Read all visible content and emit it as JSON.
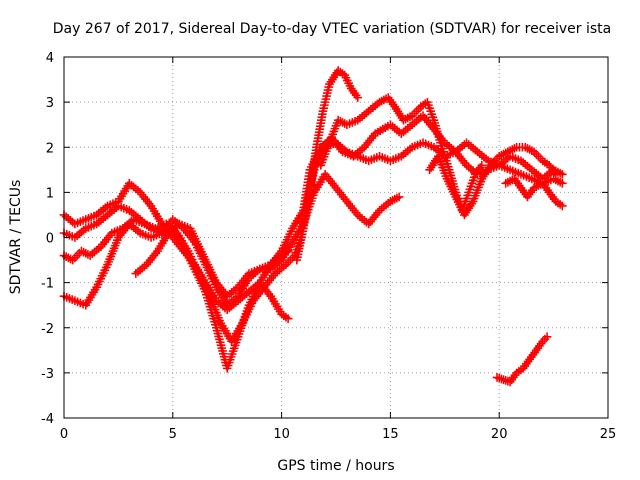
{
  "chart_data": {
    "type": "scatter",
    "title": "Day 267 of 2017, Sidereal Day-to-day VTEC variation (SDTVAR) for receiver ista",
    "xlabel": "GPS time / hours",
    "ylabel": "SDTVAR / TECUs",
    "xlim": [
      0,
      25
    ],
    "ylim": [
      -4,
      4
    ],
    "x_ticks": [
      0,
      5,
      10,
      15,
      20,
      25
    ],
    "y_ticks": [
      -4,
      -3,
      -2,
      -1,
      0,
      1,
      2,
      3,
      4
    ],
    "grid": true,
    "marker": "plus",
    "color": "#ff0000",
    "series": [
      {
        "points": [
          [
            0.0,
            -1.3
          ],
          [
            0.5,
            -1.4
          ],
          [
            1.0,
            -1.5
          ],
          [
            1.5,
            -1.1
          ],
          [
            2.0,
            -0.6
          ],
          [
            2.5,
            0.0
          ],
          [
            3.0,
            0.3
          ],
          [
            3.5,
            0.1
          ],
          [
            4.0,
            0.0
          ],
          [
            4.5,
            0.1
          ],
          [
            5.0,
            0.2
          ],
          [
            5.5,
            -0.2
          ],
          [
            6.0,
            -0.7
          ],
          [
            6.5,
            -1.2
          ],
          [
            7.0,
            -2.0
          ],
          [
            7.5,
            -2.9
          ],
          [
            8.0,
            -2.2
          ],
          [
            8.5,
            -1.5
          ],
          [
            9.0,
            -1.0
          ],
          [
            9.5,
            -0.6
          ],
          [
            10.0,
            -0.3
          ],
          [
            10.5,
            0.2
          ],
          [
            11.0,
            0.6
          ],
          [
            11.3,
            1.5
          ],
          [
            11.8,
            2.0
          ],
          [
            12.3,
            2.2
          ],
          [
            12.8,
            1.9
          ],
          [
            13.3,
            1.8
          ],
          [
            13.8,
            2.0
          ],
          [
            14.3,
            2.3
          ],
          [
            15.0,
            2.5
          ],
          [
            15.5,
            2.3
          ],
          [
            16.0,
            2.5
          ],
          [
            16.5,
            2.7
          ],
          [
            17.0,
            2.4
          ],
          [
            17.5,
            2.1
          ],
          [
            18.0,
            1.9
          ],
          [
            18.5,
            1.6
          ],
          [
            19.0,
            1.4
          ],
          [
            19.5,
            1.5
          ],
          [
            20.0,
            1.6
          ],
          [
            20.5,
            1.8
          ],
          [
            21.0,
            1.7
          ],
          [
            21.5,
            1.5
          ],
          [
            22.0,
            1.3
          ],
          [
            22.5,
            1.5
          ],
          [
            22.9,
            1.4
          ]
        ]
      },
      {
        "points": [
          [
            0.0,
            -0.4
          ],
          [
            0.4,
            -0.5
          ],
          [
            0.8,
            -0.3
          ],
          [
            1.2,
            -0.4
          ],
          [
            1.7,
            -0.2
          ],
          [
            2.2,
            0.1
          ],
          [
            2.7,
            0.2
          ],
          [
            3.2,
            0.4
          ],
          [
            3.7,
            0.3
          ],
          [
            4.2,
            0.2
          ],
          [
            4.7,
            0.3
          ],
          [
            5.2,
            0.1
          ],
          [
            5.7,
            -0.3
          ],
          [
            6.2,
            -0.8
          ],
          [
            6.7,
            -1.3
          ],
          [
            7.2,
            -1.9
          ],
          [
            7.7,
            -2.3
          ],
          [
            8.2,
            -1.9
          ],
          [
            8.7,
            -1.4
          ],
          [
            9.2,
            -1.1
          ],
          [
            9.7,
            -0.8
          ],
          [
            10.2,
            -0.6
          ],
          [
            10.6,
            -0.4
          ],
          [
            10.9,
            0.0
          ],
          [
            11.2,
            0.9
          ],
          [
            11.6,
            1.7
          ],
          [
            12.0,
            2.0
          ],
          [
            12.5,
            2.1
          ],
          [
            13.0,
            1.9
          ],
          [
            13.5,
            1.8
          ],
          [
            14.0,
            1.7
          ],
          [
            14.5,
            1.8
          ],
          [
            15.0,
            1.7
          ],
          [
            15.5,
            1.8
          ],
          [
            16.0,
            2.0
          ],
          [
            16.5,
            2.1
          ],
          [
            17.0,
            2.0
          ],
          [
            17.5,
            1.8
          ],
          [
            18.0,
            1.9
          ],
          [
            18.5,
            2.1
          ],
          [
            19.0,
            1.9
          ],
          [
            19.5,
            1.7
          ],
          [
            20.0,
            1.6
          ],
          [
            20.5,
            1.5
          ],
          [
            21.0,
            1.4
          ],
          [
            21.5,
            1.3
          ],
          [
            22.0,
            1.2
          ],
          [
            22.5,
            1.3
          ],
          [
            22.9,
            1.2
          ]
        ]
      },
      {
        "points": [
          [
            0.0,
            0.1
          ],
          [
            0.5,
            0.0
          ],
          [
            1.0,
            0.2
          ],
          [
            1.5,
            0.3
          ],
          [
            2.0,
            0.5
          ],
          [
            2.5,
            0.7
          ],
          [
            3.0,
            0.6
          ],
          [
            3.5,
            0.4
          ],
          [
            4.0,
            0.2
          ],
          [
            4.5,
            0.1
          ],
          [
            5.0,
            0.4
          ],
          [
            5.5,
            0.2
          ],
          [
            6.0,
            -0.1
          ],
          [
            6.5,
            -0.6
          ],
          [
            7.0,
            -1.1
          ],
          [
            7.5,
            -1.5
          ],
          [
            8.0,
            -1.3
          ],
          [
            8.5,
            -0.9
          ],
          [
            9.0,
            -0.7
          ],
          [
            9.5,
            -0.7
          ],
          [
            10.0,
            -0.5
          ],
          [
            10.5,
            -0.1
          ],
          [
            11.0,
            0.3
          ],
          [
            11.5,
            1.0
          ],
          [
            12.0,
            1.4
          ],
          [
            12.5,
            1.1
          ],
          [
            13.0,
            0.8
          ],
          [
            13.5,
            0.5
          ],
          [
            14.0,
            0.3
          ],
          [
            14.5,
            0.6
          ],
          [
            15.0,
            0.8
          ],
          [
            15.4,
            0.9
          ]
        ]
      },
      {
        "points": [
          [
            0.0,
            0.5
          ],
          [
            0.5,
            0.3
          ],
          [
            1.0,
            0.4
          ],
          [
            1.5,
            0.5
          ],
          [
            2.0,
            0.7
          ],
          [
            2.5,
            0.8
          ],
          [
            3.0,
            1.2
          ],
          [
            3.5,
            1.0
          ],
          [
            4.0,
            0.7
          ],
          [
            4.5,
            0.3
          ],
          [
            5.0,
            0.0
          ],
          [
            5.5,
            -0.3
          ],
          [
            6.0,
            -0.6
          ],
          [
            6.5,
            -1.0
          ],
          [
            7.0,
            -1.4
          ],
          [
            7.5,
            -1.6
          ],
          [
            8.0,
            -1.4
          ],
          [
            8.5,
            -1.2
          ],
          [
            9.0,
            -1.0
          ],
          [
            9.5,
            -1.3
          ],
          [
            10.0,
            -1.7
          ],
          [
            10.3,
            -1.8
          ]
        ]
      },
      {
        "points": [
          [
            3.3,
            -0.8
          ],
          [
            3.8,
            -0.6
          ],
          [
            4.3,
            -0.3
          ],
          [
            4.8,
            0.1
          ],
          [
            5.3,
            0.3
          ],
          [
            5.8,
            0.2
          ],
          [
            6.2,
            -0.2
          ],
          [
            6.6,
            -0.6
          ],
          [
            7.0,
            -1.0
          ],
          [
            7.5,
            -1.3
          ],
          [
            8.0,
            -1.1
          ],
          [
            8.5,
            -0.8
          ],
          [
            9.0,
            -0.7
          ],
          [
            9.5,
            -0.6
          ],
          [
            10.0,
            -0.4
          ],
          [
            10.3,
            -0.3
          ]
        ]
      },
      {
        "points": [
          [
            10.7,
            -0.5
          ],
          [
            11.0,
            0.2
          ],
          [
            11.3,
            1.0
          ],
          [
            11.6,
            2.0
          ],
          [
            11.9,
            2.8
          ],
          [
            12.2,
            3.4
          ],
          [
            12.6,
            3.7
          ],
          [
            12.9,
            3.6
          ],
          [
            13.2,
            3.3
          ],
          [
            13.5,
            3.1
          ]
        ]
      },
      {
        "points": [
          [
            11.8,
            1.6
          ],
          [
            12.2,
            2.1
          ],
          [
            12.6,
            2.6
          ],
          [
            13.0,
            2.5
          ],
          [
            13.5,
            2.6
          ],
          [
            14.0,
            2.8
          ],
          [
            14.5,
            3.0
          ],
          [
            14.9,
            3.1
          ],
          [
            15.2,
            2.9
          ],
          [
            15.6,
            2.6
          ],
          [
            16.0,
            2.7
          ],
          [
            16.4,
            2.9
          ],
          [
            16.7,
            3.0
          ],
          [
            17.0,
            2.6
          ],
          [
            17.3,
            2.1
          ],
          [
            17.7,
            1.5
          ],
          [
            18.0,
            1.0
          ],
          [
            18.3,
            0.6
          ],
          [
            18.6,
            1.0
          ],
          [
            18.9,
            1.4
          ],
          [
            19.2,
            1.6
          ]
        ]
      },
      {
        "points": [
          [
            16.8,
            1.5
          ],
          [
            17.2,
            1.8
          ],
          [
            17.6,
            1.3
          ],
          [
            18.0,
            0.9
          ],
          [
            18.4,
            0.5
          ],
          [
            18.8,
            0.8
          ],
          [
            19.2,
            1.3
          ],
          [
            19.6,
            1.6
          ],
          [
            20.0,
            1.8
          ],
          [
            20.4,
            1.9
          ],
          [
            20.8,
            2.0
          ],
          [
            21.2,
            2.0
          ],
          [
            21.6,
            1.9
          ],
          [
            22.0,
            1.7
          ],
          [
            22.3,
            1.6
          ],
          [
            22.6,
            1.4
          ]
        ]
      },
      {
        "points": [
          [
            20.3,
            1.2
          ],
          [
            20.7,
            1.3
          ],
          [
            21.0,
            1.1
          ],
          [
            21.3,
            0.9
          ],
          [
            21.6,
            1.1
          ],
          [
            22.0,
            1.2
          ],
          [
            22.3,
            1.0
          ],
          [
            22.6,
            0.8
          ],
          [
            22.9,
            0.7
          ]
        ]
      },
      {
        "points": [
          [
            19.9,
            -3.1
          ],
          [
            20.2,
            -3.15
          ],
          [
            20.5,
            -3.2
          ],
          [
            20.8,
            -3.0
          ],
          [
            21.1,
            -2.9
          ],
          [
            21.4,
            -2.7
          ],
          [
            21.7,
            -2.5
          ],
          [
            22.0,
            -2.3
          ],
          [
            22.2,
            -2.2
          ]
        ]
      }
    ]
  }
}
